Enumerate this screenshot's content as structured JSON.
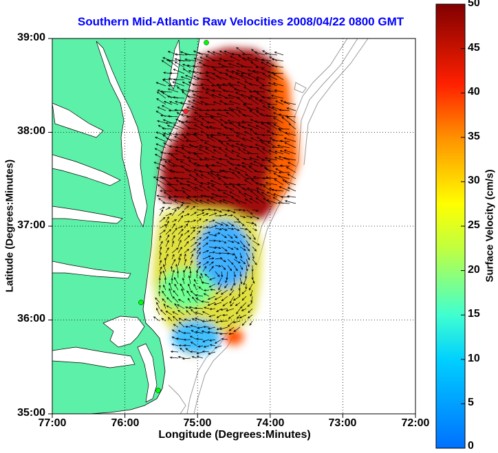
{
  "map": {
    "title": "Southern Mid-Atlantic Raw Velocities 2008/04/22 0800 GMT",
    "xlabel": "Longitude (Degrees:Minutes)",
    "ylabel": "Latitude (Degrees:Minutes)",
    "x_ticks": [
      "77:00",
      "76:00",
      "75:00",
      "74:00",
      "73:00",
      "72:00"
    ],
    "y_ticks": [
      "39:00",
      "38:00",
      "37:00",
      "36:00",
      "35:00"
    ],
    "x_range": [
      -77,
      -72
    ],
    "y_range": [
      35,
      39
    ],
    "grid": "dotted",
    "land_color": "#5cf0a8",
    "coastline_color": "#000000",
    "bathymetry_color": "#9a9a9a"
  },
  "colorbar": {
    "label": "Surface Velocity (cm/s)",
    "ticks": [
      "50",
      "45",
      "40",
      "35",
      "30",
      "25",
      "20",
      "15",
      "10",
      "5",
      "0"
    ],
    "range": [
      0,
      50
    ],
    "colormap": [
      "#0080ff",
      "#00ffff",
      "#80ff80",
      "#ffff00",
      "#ff8000",
      "#ff0000",
      "#800000"
    ]
  }
}
